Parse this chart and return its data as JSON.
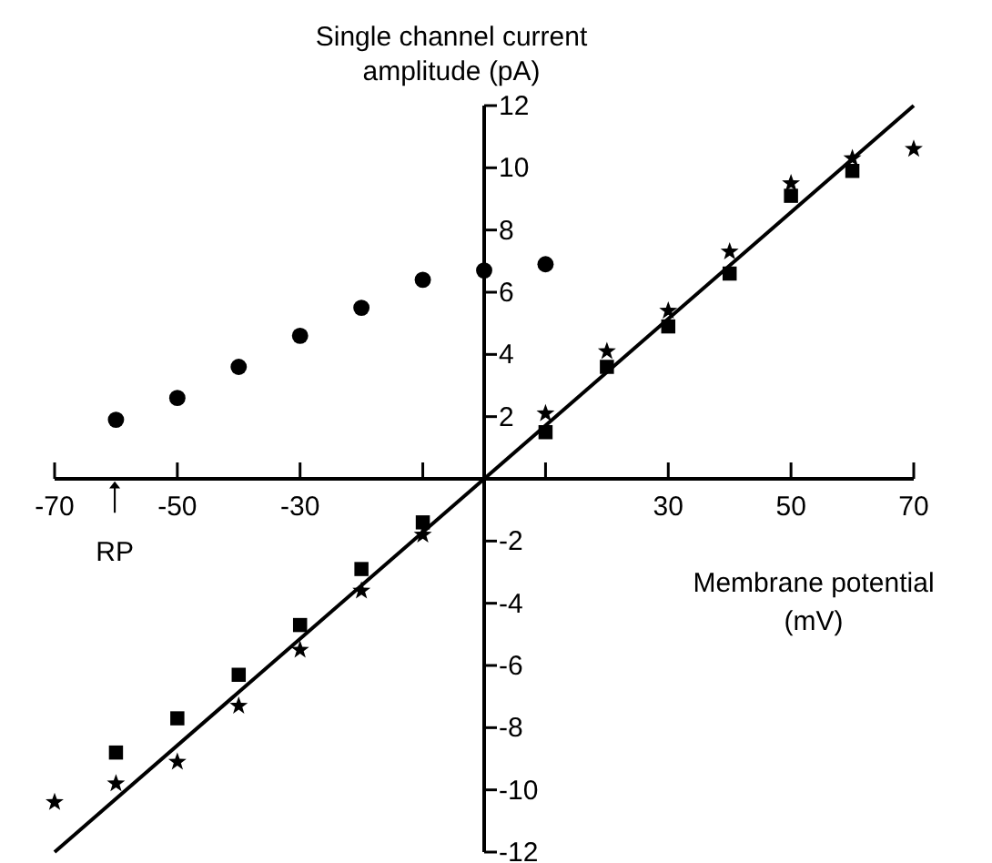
{
  "chart_data": {
    "type": "scatter",
    "xlabel": "Membrane potential (mV)",
    "ylabel": "Single channel current amplitude (pA)",
    "xlim": [
      -70,
      70
    ],
    "ylim": [
      -12,
      12
    ],
    "xticks": [
      -70,
      -50,
      -30,
      {
        "value": -10,
        "label": null
      },
      {
        "value": 10,
        "label": null
      },
      30,
      50,
      70
    ],
    "yticks": [
      -12,
      -10,
      -8,
      -6,
      -4,
      -2,
      2,
      4,
      6,
      8,
      10,
      12
    ],
    "series": [
      {
        "marker": "circle",
        "color": "#000000",
        "x": [
          -60,
          -50,
          -40,
          -30,
          -20,
          -10,
          0,
          10
        ],
        "values": [
          1.9,
          2.6,
          3.6,
          4.6,
          5.5,
          6.4,
          6.7,
          6.9
        ]
      },
      {
        "marker": "square",
        "color": "#000000",
        "x": [
          -60,
          -50,
          -40,
          -30,
          -20,
          -10,
          10,
          20,
          30,
          40,
          50,
          60
        ],
        "values": [
          -8.8,
          -7.7,
          -6.3,
          -4.7,
          -2.9,
          -1.4,
          1.5,
          3.6,
          4.9,
          6.6,
          9.1,
          9.9
        ]
      },
      {
        "marker": "star",
        "color": "#000000",
        "x": [
          -70,
          -60,
          -50,
          -40,
          -30,
          -20,
          -10,
          10,
          20,
          30,
          40,
          50,
          60,
          70
        ],
        "values": [
          -10.4,
          -9.8,
          -9.1,
          -7.3,
          -5.5,
          -3.6,
          -1.8,
          2.1,
          4.1,
          5.4,
          7.3,
          9.5,
          10.3,
          10.6
        ]
      },
      {
        "type": "line",
        "line_style": "solid",
        "color": "#000000",
        "x": [
          -70,
          70
        ],
        "values": [
          -12,
          12
        ]
      }
    ],
    "annotations": [
      "RP"
    ]
  }
}
